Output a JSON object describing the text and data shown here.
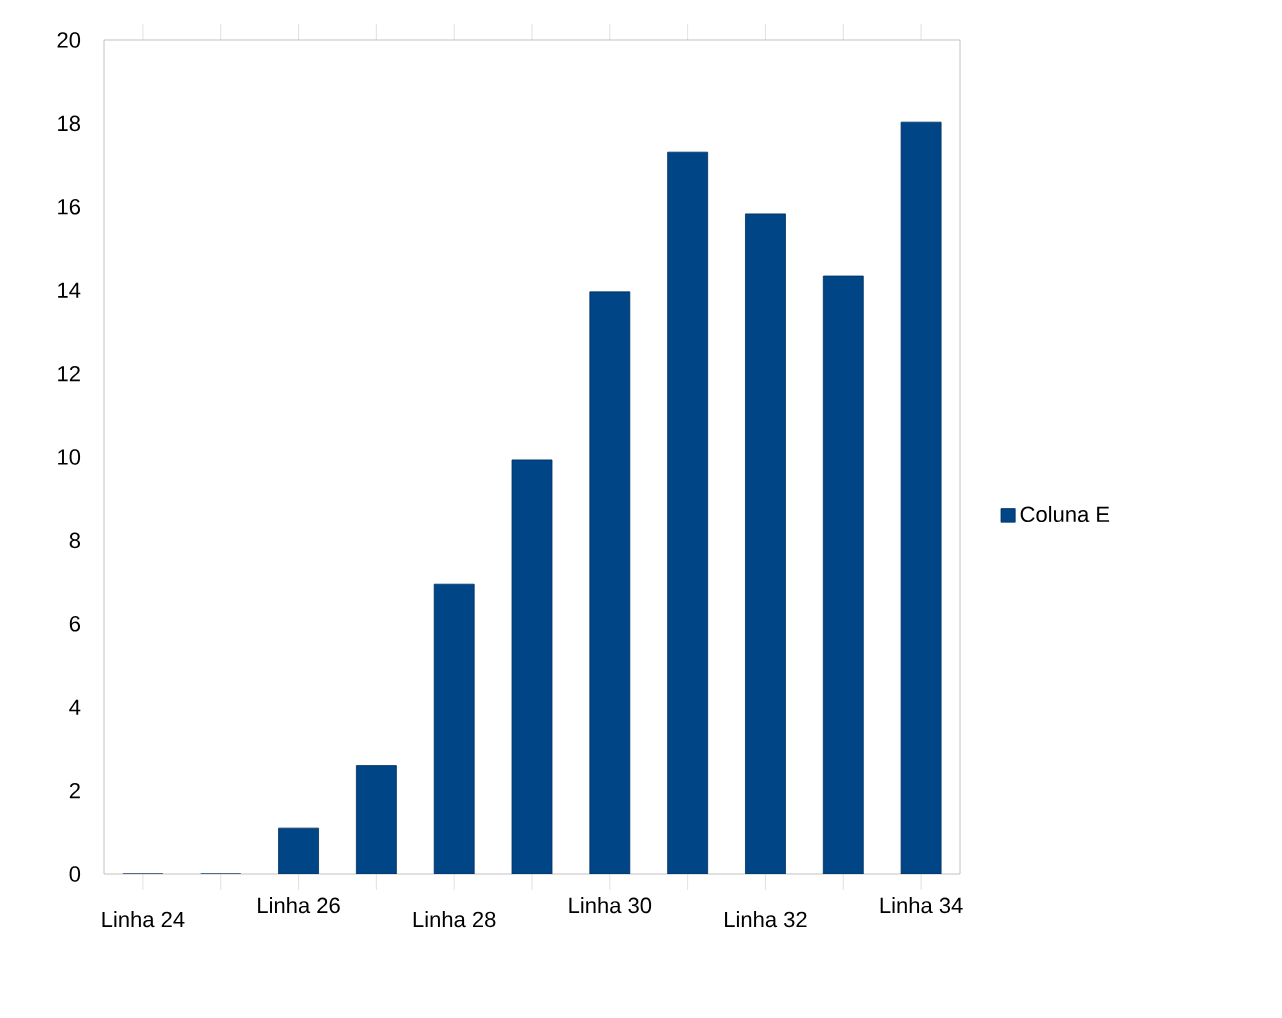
{
  "chart_data": {
    "type": "bar",
    "categories": [
      "Linha 24",
      null,
      "Linha 26",
      null,
      "Linha 28",
      null,
      "Linha 30",
      null,
      "Linha 32",
      null,
      "Linha 34"
    ],
    "series": [
      {
        "name": "Coluna E",
        "color": "#004586",
        "values": [
          0,
          0,
          1.1,
          2.6,
          6.95,
          9.93,
          13.96,
          17.31,
          15.83,
          14.34,
          18.03
        ]
      }
    ],
    "ylim": [
      0,
      20
    ],
    "yticks": [
      0,
      2,
      4,
      6,
      8,
      10,
      12,
      14,
      16,
      18,
      20
    ],
    "legend": "right"
  }
}
